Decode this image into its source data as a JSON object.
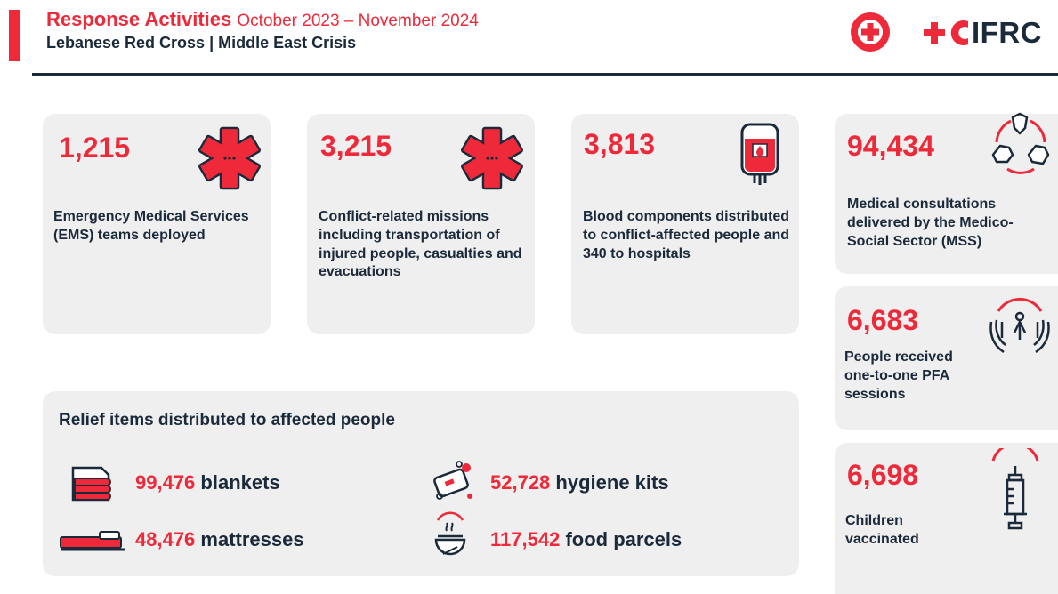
{
  "header": {
    "title": "Response Activities",
    "dates": "October 2023 – November 2024",
    "subtitle": "Lebanese Red Cross | Middle East Crisis",
    "ifrc_logo_text": "IFRC"
  },
  "colors": {
    "accent": "#ee2a3a",
    "navy": "#1b2a3b",
    "card_bg": "#efefef"
  },
  "cards": [
    {
      "number": "1,215",
      "desc": "Emergency Medical Services (EMS) teams deployed",
      "icon": "star-of-life-icon"
    },
    {
      "number": "3,215",
      "desc": "Conflict-related missions including transportation of injured people, casualties and evacuations",
      "icon": "star-of-life-icon"
    },
    {
      "number": "3,813",
      "desc": "Blood components distributed to conflict-affected people and 340 to hospitals",
      "icon": "blood-bag-icon"
    }
  ],
  "side_cards": [
    {
      "number": "94,434",
      "desc": "Medical consultations delivered by the Medico-Social Sector (MSS)",
      "icon": "hands-together-icon"
    },
    {
      "number": "6,683",
      "desc": "People received one-to-one PFA sessions",
      "icon": "supporting-hands-icon"
    },
    {
      "number": "6,698",
      "desc": "Children vaccinated",
      "icon": "syringe-icon"
    }
  ],
  "relief": {
    "title": "Relief items distributed to affected people",
    "items": [
      {
        "number": "99,476",
        "label": "blankets",
        "icon": "blankets-icon"
      },
      {
        "number": "52,728",
        "label": "hygiene kits",
        "icon": "hygiene-kit-icon"
      },
      {
        "number": "48,476",
        "label": "mattresses",
        "icon": "mattress-icon"
      },
      {
        "number": "117,542",
        "label": "food parcels",
        "icon": "food-parcel-icon"
      }
    ]
  }
}
